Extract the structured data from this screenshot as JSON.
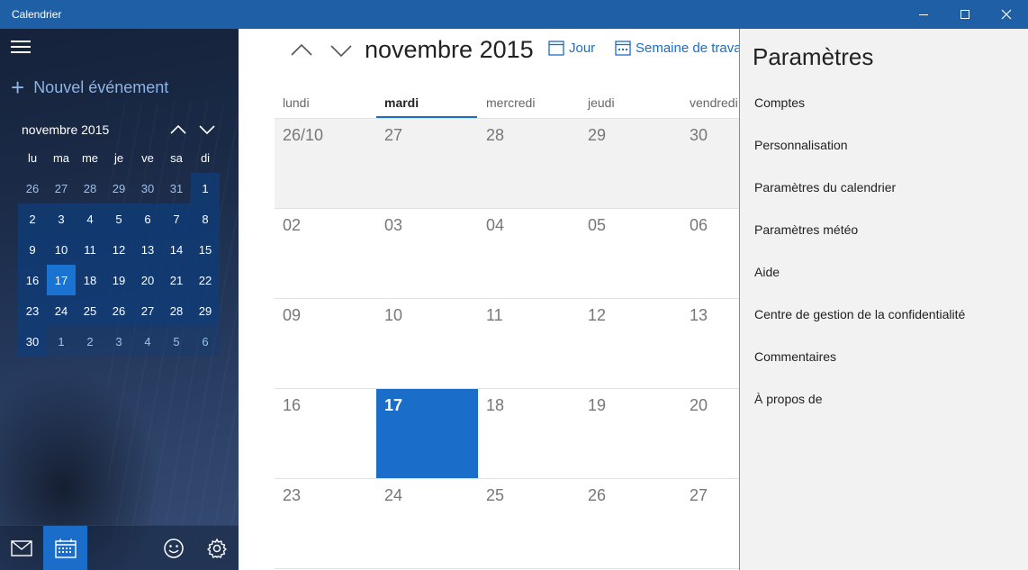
{
  "window": {
    "title": "Calendrier"
  },
  "sidebar": {
    "new_event": "Nouvel événement",
    "mini_calendar": {
      "month_label": "novembre 2015",
      "weekdays": [
        "lu",
        "ma",
        "me",
        "je",
        "ve",
        "sa",
        "di"
      ],
      "weeks": [
        [
          "26",
          "27",
          "28",
          "29",
          "30",
          "31",
          "1"
        ],
        [
          "2",
          "3",
          "4",
          "5",
          "6",
          "7",
          "8"
        ],
        [
          "9",
          "10",
          "11",
          "12",
          "13",
          "14",
          "15"
        ],
        [
          "16",
          "17",
          "18",
          "19",
          "20",
          "21",
          "22"
        ],
        [
          "23",
          "24",
          "25",
          "26",
          "27",
          "28",
          "29"
        ],
        [
          "30",
          "1",
          "2",
          "3",
          "4",
          "5",
          "6"
        ]
      ],
      "today": "17"
    }
  },
  "main": {
    "month_title": "novembre 2015",
    "views": {
      "day": "Jour",
      "work_week": "Semaine de travail"
    },
    "weekdays": [
      "lundi",
      "mardi",
      "mercredi",
      "jeudi",
      "vendredi"
    ],
    "active_weekday": "mardi",
    "weeks": [
      [
        "26/10",
        "27",
        "28",
        "29",
        "30"
      ],
      [
        "02",
        "03",
        "04",
        "05",
        "06"
      ],
      [
        "09",
        "10",
        "11",
        "12",
        "13"
      ],
      [
        "16",
        "17",
        "18",
        "19",
        "20"
      ],
      [
        "23",
        "24",
        "25",
        "26",
        "27"
      ]
    ],
    "today": "17"
  },
  "settings": {
    "title": "Paramètres",
    "items": [
      "Comptes",
      "Personnalisation",
      "Paramètres du calendrier",
      "Paramètres météo",
      "Aide",
      "Centre de gestion de la confidentialité",
      "Commentaires",
      "À propos de"
    ]
  },
  "colors": {
    "titlebar": "#1f5fa6",
    "accent": "#1a6ec9"
  }
}
